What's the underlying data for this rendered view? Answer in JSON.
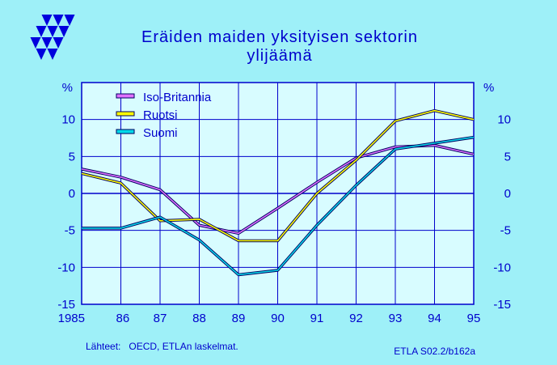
{
  "title_lines": [
    "Eräiden maiden yksityisen sektorin",
    "ylijäämä"
  ],
  "source_note": "Lähteet:   OECD, ETLAn laskelmat.",
  "chart_id": "ETLA S02.2/b162a",
  "colors": {
    "background": "#9ef0f8",
    "plot_background": "#d8fcff",
    "grid": "#0000cc",
    "text": "#0000cc",
    "logo": "#0000dd"
  },
  "chart_data": {
    "type": "line",
    "x_tick_labels": [
      "1985",
      "86",
      "87",
      "88",
      "89",
      "90",
      "91",
      "92",
      "93",
      "94",
      "95"
    ],
    "x": [
      1985,
      1986,
      1987,
      1988,
      1989,
      1990,
      1991,
      1992,
      1993,
      1994,
      1995
    ],
    "ylabel_left": "%",
    "ylabel_right": "%",
    "ylim": [
      -15,
      15
    ],
    "y_tick_values": [
      -15,
      -10,
      -5,
      0,
      5,
      10
    ],
    "grid": true,
    "legend_position": "top-left",
    "series": [
      {
        "name": "Iso-Britannia",
        "color": "#e070ff",
        "x": [
          1985,
          1986,
          1987,
          1988,
          1989,
          1990,
          1991,
          1992,
          1993,
          1994,
          1995
        ],
        "values": [
          3.3,
          2.2,
          0.5,
          -4.3,
          -5.4,
          -2.0,
          1.5,
          4.8,
          6.3,
          6.5,
          5.3
        ]
      },
      {
        "name": "Ruotsi",
        "color": "#ffff00",
        "x": [
          1985,
          1986,
          1987,
          1988,
          1989,
          1989.5,
          1990,
          1991,
          1992,
          1993,
          1994,
          1995
        ],
        "values": [
          2.7,
          1.4,
          -3.7,
          -3.5,
          -6.4,
          -6.4,
          -6.4,
          0.0,
          4.5,
          9.8,
          11.2,
          10.0
        ]
      },
      {
        "name": "Suomi",
        "color": "#00d8e8",
        "x": [
          1985,
          1986,
          1987,
          1988,
          1989,
          1990,
          1991,
          1992,
          1993,
          1994,
          1995
        ],
        "values": [
          -4.7,
          -4.7,
          -3.2,
          -6.3,
          -11.0,
          -10.4,
          -4.3,
          1.1,
          6.0,
          6.8,
          7.6
        ]
      }
    ]
  }
}
